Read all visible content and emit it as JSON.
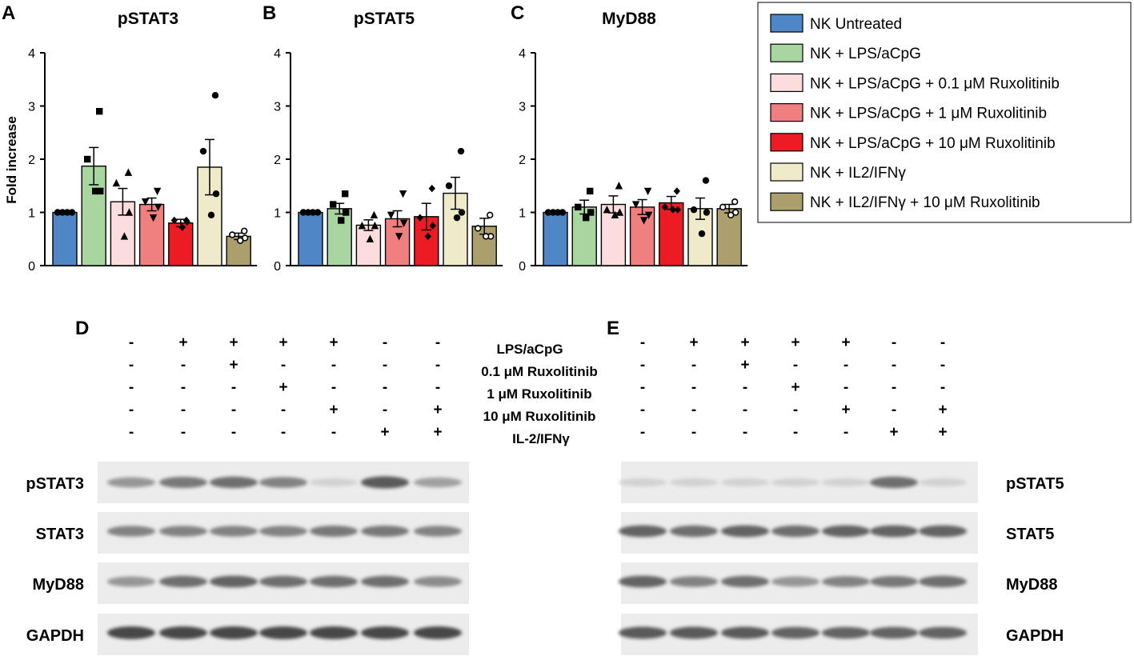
{
  "legend": [
    {
      "label": "NK Untreated",
      "color": "#4f86c6"
    },
    {
      "label": "NK + LPS/aCpG",
      "color": "#a9d5a0"
    },
    {
      "label": "NK + LPS/aCpG + 0.1 μM Ruxolitinib",
      "color": "#fbdddd"
    },
    {
      "label": "NK + LPS/aCpG + 1 μM Ruxolitinib",
      "color": "#f08080"
    },
    {
      "label": "NK + LPS/aCpG + 10 μM Ruxolitinib",
      "color": "#ec1c24"
    },
    {
      "label": "NK + IL2/IFNγ",
      "color": "#efebca"
    },
    {
      "label": "NK + IL2/IFNγ + 10 μM Ruxolitinib",
      "color": "#ab9f6e"
    }
  ],
  "chart_data": [
    {
      "type": "bar",
      "panel": "A",
      "title": "pSTAT3",
      "ylabel": "Fold increase",
      "ylim": [
        0,
        4
      ],
      "yticks": [
        "0",
        "1",
        "2",
        "3",
        "4"
      ],
      "categories": [
        "NK Untreated",
        "NK + LPS/aCpG",
        "NK + LPS/aCpG + 0.1 μM Ruxolitinib",
        "NK + LPS/aCpG + 1 μM Ruxolitinib",
        "NK + LPS/aCpG + 10 μM Ruxolitinib",
        "NK + IL2/IFNγ",
        "NK + IL2/IFNγ + 10 μM Ruxolitinib"
      ],
      "values": [
        1.0,
        1.87,
        1.2,
        1.15,
        0.8,
        1.85,
        0.55
      ],
      "sem": [
        0,
        0.35,
        0.25,
        0.12,
        0.07,
        0.52,
        0.06
      ],
      "points": [
        [
          1,
          1,
          1,
          1
        ],
        [
          2.9,
          2.0,
          1.4,
          1.4
        ],
        [
          1.75,
          1.55,
          1.0,
          0.55
        ],
        [
          1.4,
          1.2,
          1.1,
          0.9
        ],
        [
          0.85,
          0.85,
          0.82,
          0.72
        ],
        [
          3.2,
          2.15,
          1.35,
          0.95
        ],
        [
          0.65,
          0.58,
          0.52,
          0.47
        ]
      ]
    },
    {
      "type": "bar",
      "panel": "B",
      "title": "pSTAT5",
      "ylim": [
        0,
        4
      ],
      "yticks": [
        "0",
        "1",
        "2",
        "3",
        "4"
      ],
      "categories": [
        "NK Untreated",
        "NK + LPS/aCpG",
        "NK + LPS/aCpG + 0.1 μM Ruxolitinib",
        "NK + LPS/aCpG + 1 μM Ruxolitinib",
        "NK + LPS/aCpG + 10 μM Ruxolitinib",
        "NK + IL2/IFNγ",
        "NK + IL2/IFNγ + 10 μM Ruxolitinib"
      ],
      "values": [
        1.0,
        1.07,
        0.76,
        0.88,
        0.92,
        1.36,
        0.74
      ],
      "sem": [
        0,
        0.1,
        0.1,
        0.15,
        0.25,
        0.3,
        0.15
      ],
      "points": [
        [
          1,
          1,
          1,
          1
        ],
        [
          1.35,
          1.15,
          1.0,
          0.85
        ],
        [
          0.95,
          0.75,
          0.75,
          0.5
        ],
        [
          1.35,
          0.95,
          0.8,
          0.55
        ],
        [
          1.45,
          0.9,
          0.75,
          0.55
        ],
        [
          2.15,
          1.5,
          1.0,
          0.9
        ],
        [
          0.95,
          0.7,
          0.55,
          0.55
        ]
      ]
    },
    {
      "type": "bar",
      "panel": "C",
      "title": "MyD88",
      "ylim": [
        0,
        4
      ],
      "yticks": [
        "0",
        "1",
        "2",
        "3",
        "4"
      ],
      "categories": [
        "NK Untreated",
        "NK + LPS/aCpG",
        "NK + LPS/aCpG + 0.1 μM Ruxolitinib",
        "NK + LPS/aCpG + 1 μM Ruxolitinib",
        "NK + LPS/aCpG + 10 μM Ruxolitinib",
        "NK + IL2/IFNγ",
        "NK + IL2/IFNγ + 10 μM Ruxolitinib"
      ],
      "values": [
        1.0,
        1.1,
        1.15,
        1.1,
        1.18,
        1.07,
        1.07
      ],
      "sem": [
        0,
        0.13,
        0.16,
        0.14,
        0.12,
        0.2,
        0.08
      ],
      "points": [
        [
          1,
          1,
          1,
          1
        ],
        [
          1.4,
          1.1,
          1.0,
          0.9
        ],
        [
          1.5,
          1.05,
          1.0,
          0.95
        ],
        [
          1.4,
          1.15,
          0.95,
          0.85
        ],
        [
          1.4,
          1.1,
          1.05,
          1.05
        ],
        [
          1.6,
          1.05,
          1.0,
          0.6
        ],
        [
          1.2,
          1.1,
          1.0,
          0.95
        ]
      ]
    }
  ],
  "western": {
    "panels": [
      {
        "letter": "D",
        "stat_label": "pSTAT3",
        "blots": [
          "pSTAT3",
          "STAT3",
          "MyD88",
          "GAPDH"
        ]
      },
      {
        "letter": "E",
        "stat_label": "pSTAT5",
        "blots": [
          "pSTAT5",
          "STAT5",
          "MyD88",
          "GAPDH"
        ]
      }
    ],
    "conditions": [
      "LPS/aCpG",
      "0.1 μM Ruxolitinib",
      "1 μM Ruxolitinib",
      "10 μM Ruxolitinib",
      "IL-2/IFNγ"
    ],
    "matrix": [
      [
        "-",
        "+",
        "+",
        "+",
        "+",
        "-",
        "-"
      ],
      [
        "-",
        "-",
        "+",
        "-",
        "-",
        "-",
        "-"
      ],
      [
        "-",
        "-",
        "-",
        "+",
        "-",
        "-",
        "-"
      ],
      [
        "-",
        "-",
        "-",
        "-",
        "+",
        "-",
        "+"
      ],
      [
        "-",
        "-",
        "-",
        "-",
        "-",
        "+",
        "+"
      ]
    ],
    "band_intensity_D": [
      [
        0.35,
        0.5,
        0.55,
        0.45,
        0.05,
        0.65,
        0.3
      ],
      [
        0.45,
        0.45,
        0.45,
        0.45,
        0.5,
        0.5,
        0.45
      ],
      [
        0.35,
        0.55,
        0.6,
        0.55,
        0.55,
        0.55,
        0.4
      ],
      [
        0.75,
        0.75,
        0.75,
        0.75,
        0.75,
        0.75,
        0.75
      ]
    ],
    "band_intensity_E": [
      [
        0.05,
        0.05,
        0.05,
        0.05,
        0.05,
        0.55,
        0.05
      ],
      [
        0.6,
        0.55,
        0.6,
        0.55,
        0.6,
        0.6,
        0.6
      ],
      [
        0.6,
        0.45,
        0.55,
        0.35,
        0.45,
        0.5,
        0.55
      ],
      [
        0.65,
        0.65,
        0.65,
        0.6,
        0.6,
        0.6,
        0.6
      ]
    ]
  }
}
